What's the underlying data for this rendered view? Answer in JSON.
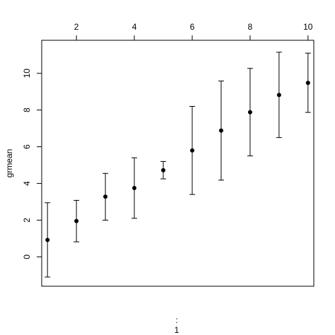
{
  "chart_data": {
    "type": "scatter",
    "title": "",
    "xlabel": ":\n1",
    "xlabel_lines": [
      ":",
      "1"
    ],
    "ylabel": "grmean",
    "x_axis_position": "top",
    "xlim": [
      0.8,
      10.2
    ],
    "ylim": [
      -1.6,
      11.8
    ],
    "xticks": [
      2,
      4,
      6,
      8,
      10
    ],
    "yticks": [
      0,
      2,
      4,
      6,
      8,
      10
    ],
    "grid": false,
    "marker": "filled-circle",
    "error_bars": true,
    "points": [
      {
        "x": 1,
        "y": 0.92,
        "lower": -1.1,
        "upper": 2.95
      },
      {
        "x": 2,
        "y": 1.95,
        "lower": 0.82,
        "upper": 3.08
      },
      {
        "x": 3,
        "y": 3.28,
        "lower": 2.0,
        "upper": 4.55
      },
      {
        "x": 4,
        "y": 3.75,
        "lower": 2.1,
        "upper": 5.4
      },
      {
        "x": 5,
        "y": 4.72,
        "lower": 4.25,
        "upper": 5.2
      },
      {
        "x": 6,
        "y": 5.8,
        "lower": 3.4,
        "upper": 8.2
      },
      {
        "x": 7,
        "y": 6.88,
        "lower": 4.18,
        "upper": 9.58
      },
      {
        "x": 8,
        "y": 7.88,
        "lower": 5.5,
        "upper": 10.27
      },
      {
        "x": 9,
        "y": 8.82,
        "lower": 6.5,
        "upper": 11.15
      },
      {
        "x": 10,
        "y": 9.48,
        "lower": 7.87,
        "upper": 11.1
      }
    ]
  }
}
